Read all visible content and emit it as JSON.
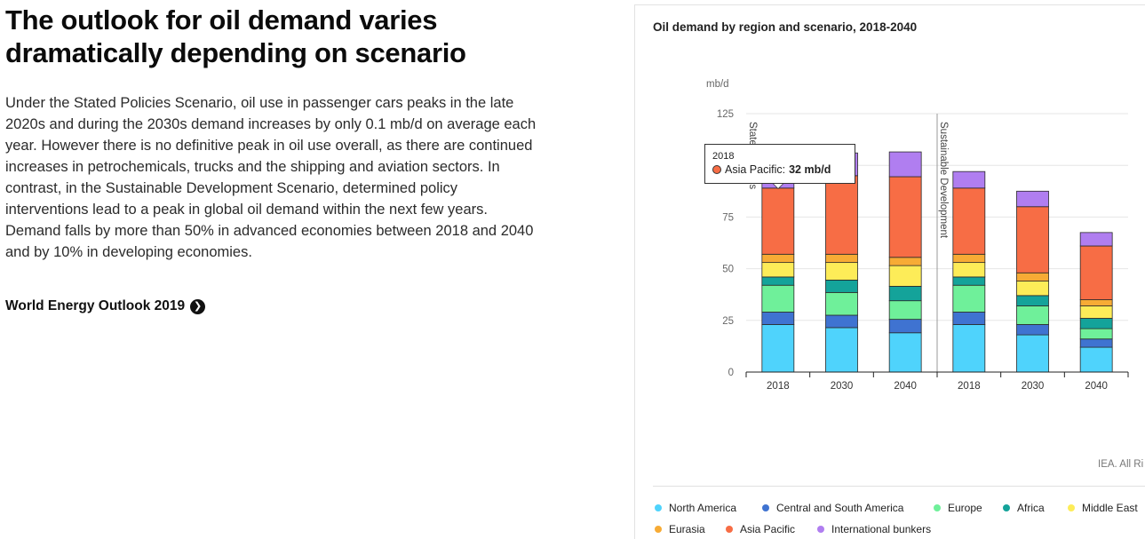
{
  "article": {
    "headline": "The outlook for oil demand varies dramatically depending on scenario",
    "body": "Under the Stated Policies Scenario, oil use in passenger cars peaks in the late 2020s and during the 2030s demand increases by only 0.1 mb/d on average each year. However there is no definitive peak in oil use overall, as there are continued increases in petrochemicals, trucks and the shipping and aviation sectors. In contrast, in the Sustainable Development Scenario, determined policy interventions lead to a peak in global oil demand within the next few years. Demand falls by more than 50% in advanced economies between 2018 and 2040 and by 10% in developing economies.",
    "link_label": "World Energy Outlook 2019",
    "link_icon": "chevron-right-icon"
  },
  "chart_data": {
    "type": "bar",
    "stacked": true,
    "title": "Oil demand by region and scenario, 2018-2040",
    "ylabel": "mb/d",
    "ylim": [
      0,
      125
    ],
    "yticks": [
      0,
      25,
      50,
      75,
      100,
      125
    ],
    "groups": [
      {
        "name": "Stated Policies",
        "categories": [
          "2018",
          "2030",
          "2040"
        ]
      },
      {
        "name": "Sustainable Development",
        "categories": [
          "2018",
          "2030",
          "2040"
        ]
      }
    ],
    "categories": [
      "2018",
      "2030",
      "2040",
      "2018",
      "2030",
      "2040"
    ],
    "series": [
      {
        "name": "North America",
        "color": "#4fd3fc",
        "values": [
          23,
          21.5,
          19,
          23,
          18,
          12
        ]
      },
      {
        "name": "Central and South America",
        "color": "#3f73d1",
        "values": [
          6,
          6,
          6.5,
          6,
          5,
          4
        ]
      },
      {
        "name": "Europe",
        "color": "#6ff09a",
        "values": [
          13,
          11,
          9,
          13,
          9,
          5
        ]
      },
      {
        "name": "Africa",
        "color": "#14a39a",
        "values": [
          4,
          6,
          7,
          4,
          5,
          5
        ]
      },
      {
        "name": "Middle East",
        "color": "#fdec58",
        "values": [
          7,
          8.5,
          10,
          7,
          7,
          6
        ]
      },
      {
        "name": "Eurasia",
        "color": "#f7ab35",
        "values": [
          4,
          4,
          4,
          4,
          4,
          3
        ]
      },
      {
        "name": "Asia Pacific",
        "color": "#f76d45",
        "values": [
          32,
          38,
          39,
          32,
          32,
          26
        ]
      },
      {
        "name": "International bunkers",
        "color": "#b07ef0",
        "values": [
          8,
          11,
          12,
          8,
          7.5,
          6.5
        ]
      }
    ],
    "tooltip": {
      "year": "2018",
      "series": "Asia Pacific",
      "label": "Asia Pacific:",
      "value": "32 mb/d"
    },
    "credit": "IEA. All Ri"
  }
}
